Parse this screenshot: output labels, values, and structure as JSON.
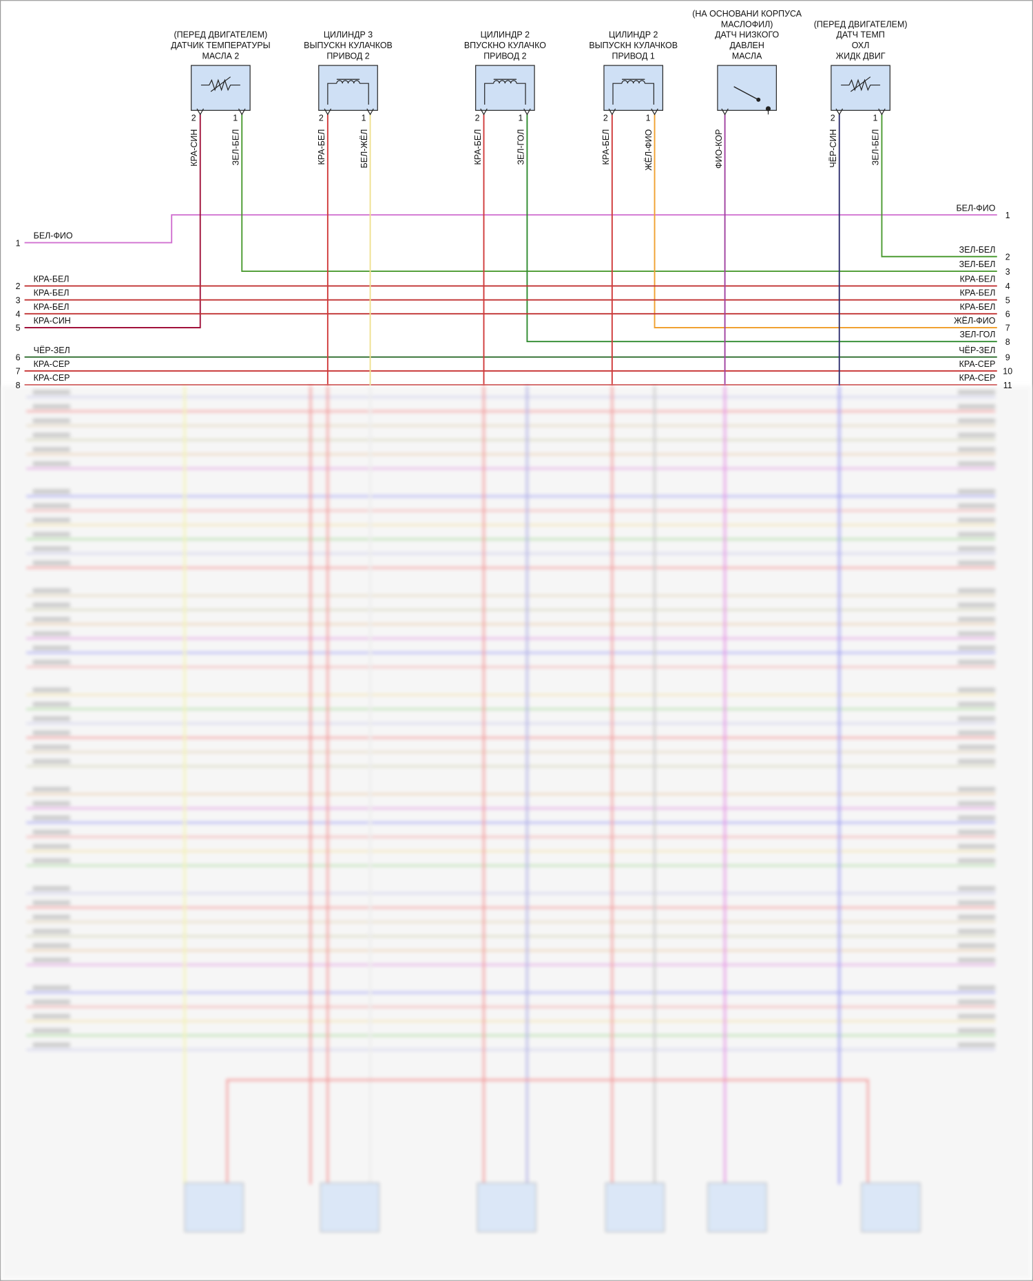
{
  "components": [
    {
      "label": [
        "(ПЕРЕД ДВИГАТЕЛЕМ)",
        "ДАТЧИК ТЕМПЕРАТУРЫ",
        "МАСЛА 2"
      ],
      "pins": [
        2,
        1
      ],
      "wires": [
        "КРА-СИН",
        "ЗЕЛ-БЕЛ"
      ]
    },
    {
      "label": [
        "ЦИЛИНДР 3",
        "ВЫПУСКН КУЛАЧКОВ",
        "ПРИВОД 2"
      ],
      "pins": [
        2,
        1
      ],
      "wires": [
        "КРА-БЕЛ",
        "БЕЛ-ЖЁЛ"
      ]
    },
    {
      "label": [
        "ЦИЛИНДР 2",
        "ВПУСКНО КУЛАЧКО",
        "ПРИВОД 2"
      ],
      "pins": [
        2,
        1
      ],
      "wires": [
        "КРА-БЕЛ",
        "ЗЕЛ-ГОЛ"
      ]
    },
    {
      "label": [
        "ЦИЛИНДР 2",
        "ВЫПУСКН КУЛАЧКОВ",
        "ПРИВОД 1"
      ],
      "pins": [
        2,
        1
      ],
      "wires": [
        "КРА-БЕЛ",
        "ЖЁЛ-ФИО"
      ]
    },
    {
      "label": [
        "(НА ОСНОВАНИ КОРПУСА",
        "МАСЛОФИЛ)",
        "ДАТЧ НИЗКОГО",
        "ДАВЛЕН",
        "МАСЛА"
      ],
      "wires": [
        "ФИО-КОР"
      ]
    },
    {
      "label": [
        "(ПЕРЕД ДВИГАТЕЛЕМ)",
        "ДАТЧ ТЕМП",
        "ОХЛ",
        "ЖИДК ДВИГ"
      ],
      "pins": [
        2,
        1
      ],
      "wires": [
        "ЧЁР-СИН",
        "ЗЕЛ-БЕЛ"
      ]
    }
  ],
  "left_connector": [
    {
      "pin": 1,
      "wire": "БЕЛ-ФИО"
    },
    {
      "pin": 2,
      "wire": "КРА-БЕЛ"
    },
    {
      "pin": 3,
      "wire": "КРА-БЕЛ"
    },
    {
      "pin": 4,
      "wire": "КРА-БЕЛ"
    },
    {
      "pin": 5,
      "wire": "КРА-СИН"
    },
    {
      "pin": 6,
      "wire": "ЧЁР-ЗЕЛ"
    },
    {
      "pin": 7,
      "wire": "КРА-СЕР"
    },
    {
      "pin": 8,
      "wire": "КРА-СЕР"
    }
  ],
  "right_connector": [
    {
      "pin": 1,
      "wire": "БЕЛ-ФИО"
    },
    {
      "pin": 2,
      "wire": "ЗЕЛ-БЕЛ"
    },
    {
      "pin": 3,
      "wire": "ЗЕЛ-БЕЛ"
    },
    {
      "pin": 4,
      "wire": "КРА-БЕЛ"
    },
    {
      "pin": 5,
      "wire": "КРА-БЕЛ"
    },
    {
      "pin": 6,
      "wire": "КРА-БЕЛ"
    },
    {
      "pin": 7,
      "wire": "ЖЁЛ-ФИО"
    },
    {
      "pin": 8,
      "wire": "ЗЕЛ-ГОЛ"
    },
    {
      "pin": 9,
      "wire": "ЧЁР-ЗЕЛ"
    },
    {
      "pin": 10,
      "wire": "КРА-СЕР"
    },
    {
      "pin": 11,
      "wire": "КРА-СЕР"
    }
  ]
}
